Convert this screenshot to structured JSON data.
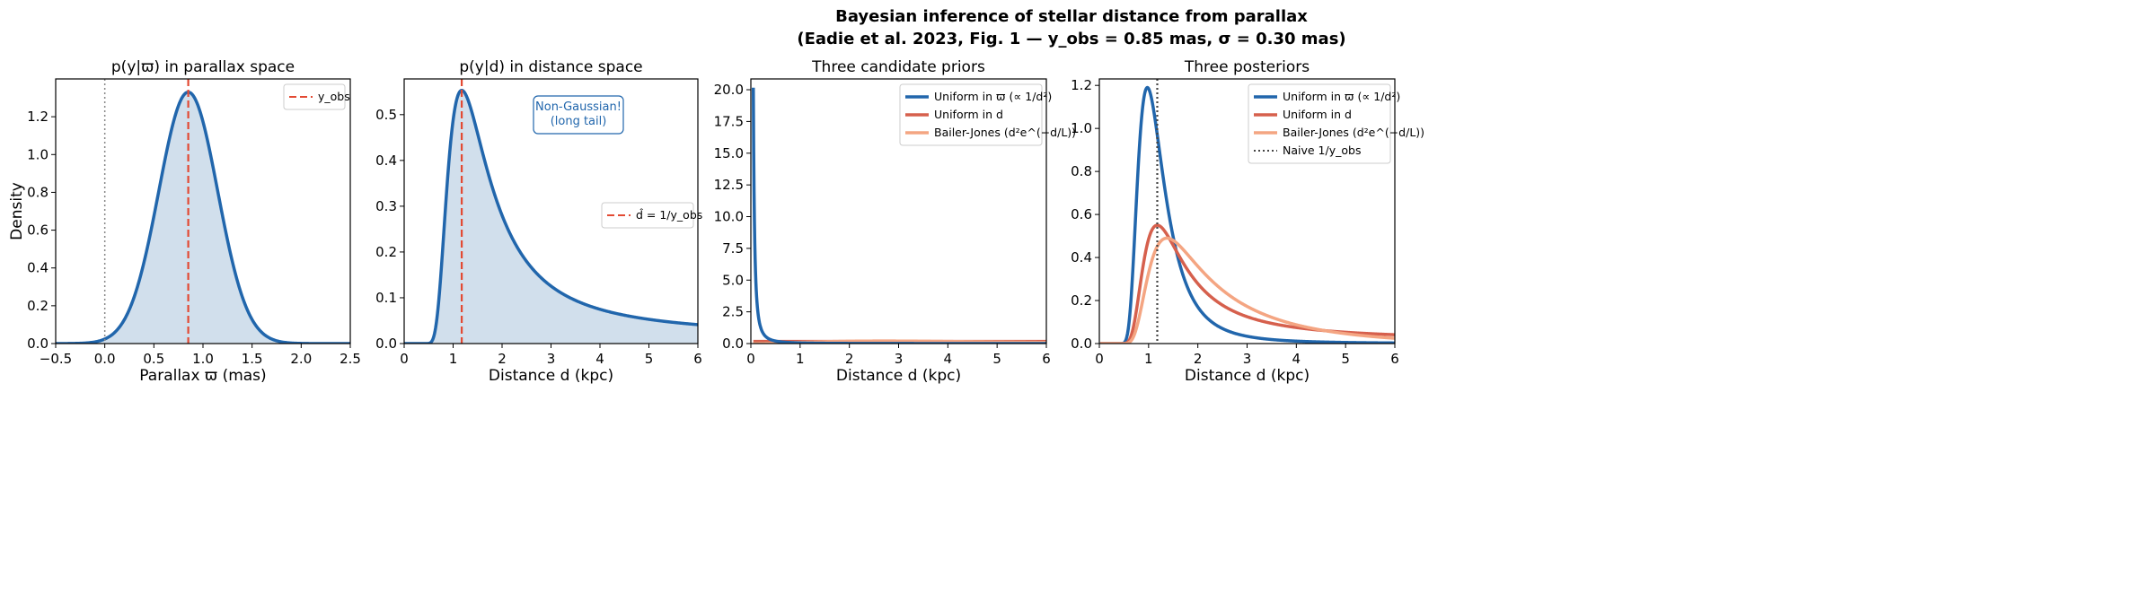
{
  "suptitle": {
    "line1": "Bayesian inference of stellar distance from parallax",
    "line2": "(Eadie et al. 2023, Fig. 1 — y_obs = 0.85 mas, σ = 0.30 mas)"
  },
  "colors": {
    "blue": "#2166ac",
    "red": "#d6604d",
    "orange": "#f4a582",
    "dashed": "#e34a33",
    "fill": "#d1dfec",
    "annotation": "#2166ac"
  },
  "chart_data": [
    {
      "type": "area",
      "title": "p(y|ϖ) in parallax space",
      "xlabel": "Parallax ϖ (mas)",
      "ylabel": "Density",
      "xlim": [
        -0.5,
        2.5
      ],
      "ylim": [
        0,
        1.4
      ],
      "xticks": [
        "−0.5",
        "0.0",
        "0.5",
        "1.0",
        "1.5",
        "2.0",
        "2.5"
      ],
      "yticks": [
        "0.0",
        "0.2",
        "0.4",
        "0.6",
        "0.8",
        "1.0",
        "1.2"
      ],
      "model": {
        "y_obs": 0.85,
        "sigma": 0.3,
        "peak": 1.33
      },
      "vlines": [
        {
          "x": 0.85,
          "style": "dashed",
          "label": "y_obs"
        },
        {
          "x": 0.0,
          "style": "dotted"
        }
      ],
      "legend": {
        "position": "top-right",
        "entries": [
          "y_obs"
        ]
      }
    },
    {
      "type": "area",
      "title": "p(y|d) in distance space",
      "xlabel": "Distance d (kpc)",
      "xlim": [
        0,
        6
      ],
      "ylim": [
        0,
        0.578
      ],
      "xticks": [
        "0",
        "1",
        "2",
        "3",
        "4",
        "5",
        "6"
      ],
      "yticks": [
        "0.0",
        "0.1",
        "0.2",
        "0.3",
        "0.4",
        "0.5"
      ],
      "model": {
        "peak": 0.553,
        "peak_d": 1.15,
        "value_at_6": 0.042
      },
      "vlines": [
        {
          "x": 1.176,
          "style": "dashed",
          "label": "d̂ = 1/y_obs"
        }
      ],
      "annotation": [
        "Non-Gaussian!",
        "(long tail)"
      ],
      "legend": {
        "position": "center-right",
        "entries": [
          "d̂ = 1/y_obs"
        ]
      }
    },
    {
      "type": "line",
      "title": "Three candidate priors",
      "xlabel": "Distance d (kpc)",
      "xlim": [
        0,
        6
      ],
      "ylim": [
        0,
        20.85
      ],
      "xticks": [
        "0",
        "1",
        "2",
        "3",
        "4",
        "5",
        "6"
      ],
      "yticks": [
        "0.0",
        "2.5",
        "5.0",
        "7.5",
        "10.0",
        "12.5",
        "15.0",
        "17.5",
        "20.0"
      ],
      "series": [
        {
          "name": "Uniform in ϖ (∝ 1/d²)",
          "color": "blue",
          "form": "1/d^2",
          "max": 20.0
        },
        {
          "name": "Uniform in d",
          "color": "red",
          "form": "const",
          "value": 0.167
        },
        {
          "name": "Bailer-Jones (d²e^(−d/L))",
          "color": "orange",
          "form": "d^2 exp(-d/L)",
          "L": 1.35,
          "peak": 0.2
        }
      ],
      "legend": {
        "position": "top-right"
      }
    },
    {
      "type": "line",
      "title": "Three posteriors",
      "xlabel": "Distance d (kpc)",
      "xlim": [
        0,
        6
      ],
      "ylim": [
        0,
        1.23
      ],
      "xticks": [
        "0",
        "1",
        "2",
        "3",
        "4",
        "5",
        "6"
      ],
      "yticks": [
        "0.0",
        "0.2",
        "0.4",
        "0.6",
        "0.8",
        "1.0",
        "1.2"
      ],
      "series": [
        {
          "name": "Uniform in ϖ (∝ 1/d²)",
          "color": "blue",
          "peak": 1.19,
          "peak_d": 0.97
        },
        {
          "name": "Uniform in d",
          "color": "red",
          "peak": 0.55,
          "peak_d": 1.15
        },
        {
          "name": "Bailer-Jones (d²e^(−d/L))",
          "color": "orange",
          "peak": 0.49,
          "peak_d": 1.45
        }
      ],
      "vlines": [
        {
          "x": 1.176,
          "style": "dotted",
          "label": "Naive 1/y_obs"
        }
      ],
      "legend": {
        "position": "top-right",
        "entries": [
          "Uniform in ϖ (∝ 1/d²)",
          "Uniform in d",
          "Bailer-Jones (d²e^(−d/L))",
          "Naive 1/y_obs"
        ]
      }
    }
  ]
}
